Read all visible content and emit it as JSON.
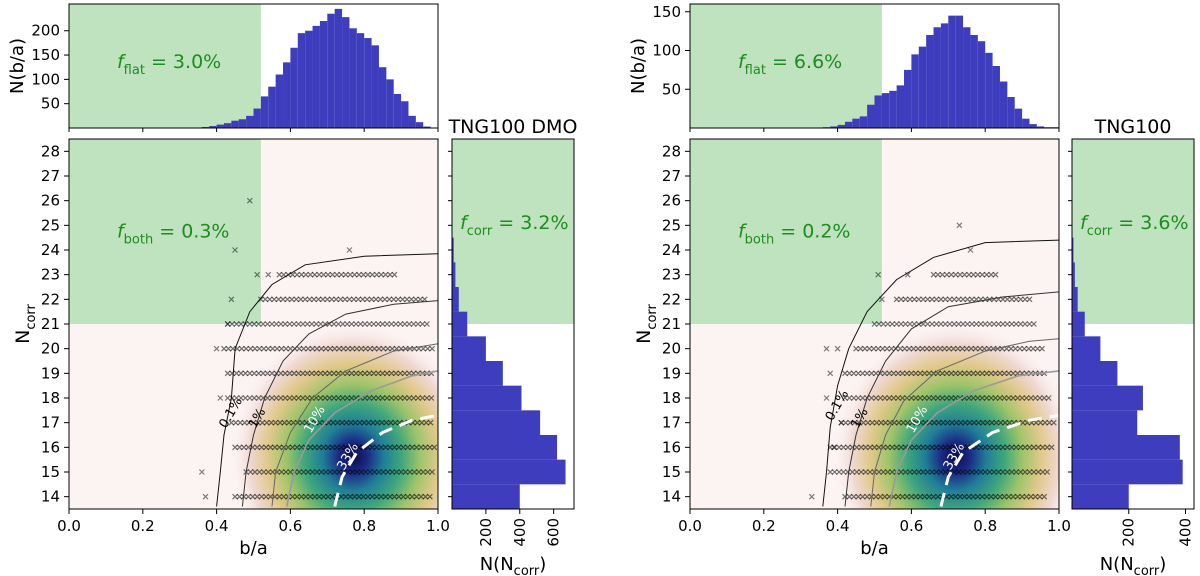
{
  "chart_data": [
    {
      "panel": "TNG100 DMO",
      "type": "scatter",
      "title": "TNG100 DMO",
      "xlabel": "b/a",
      "ylabel": "N",
      "ylabel_sub": "corr",
      "xlim": [
        0.0,
        1.0
      ],
      "ylim": [
        13.5,
        28.5
      ],
      "xticks": [
        "0.0",
        "0.2",
        "0.4",
        "0.6",
        "0.8",
        "1.0"
      ],
      "yticks": [
        "14",
        "15",
        "16",
        "17",
        "18",
        "19",
        "20",
        "21",
        "22",
        "23",
        "24",
        "25",
        "26",
        "27",
        "28"
      ],
      "shaded_regions": [
        {
          "x": [
            0.0,
            0.52
          ],
          "y": [
            21.0,
            28.5
          ]
        }
      ],
      "f_both": {
        "symbol": "f",
        "sub": "both",
        "text": " = 0.3%"
      },
      "density_peak": {
        "ba": 0.77,
        "ncorr": 15.6
      },
      "contours": [
        {
          "label": "0.1%",
          "points": [
            [
              0.4,
              13.6
            ],
            [
              0.41,
              15.0
            ],
            [
              0.42,
              16.5
            ],
            [
              0.44,
              18.0
            ],
            [
              0.45,
              20.0
            ],
            [
              0.49,
              21.5
            ],
            [
              0.55,
              22.6
            ],
            [
              0.64,
              23.4
            ],
            [
              0.8,
              23.75
            ],
            [
              1.0,
              23.85
            ]
          ]
        },
        {
          "label": "1%",
          "points": [
            [
              0.47,
              13.6
            ],
            [
              0.48,
              15.0
            ],
            [
              0.5,
              16.5
            ],
            [
              0.53,
              18.0
            ],
            [
              0.58,
              19.5
            ],
            [
              0.65,
              20.6
            ],
            [
              0.75,
              21.4
            ],
            [
              0.88,
              21.8
            ],
            [
              1.0,
              21.95
            ]
          ]
        },
        {
          "label": "",
          "points": [
            [
              0.55,
              13.6
            ],
            [
              0.56,
              15.0
            ],
            [
              0.6,
              16.6
            ],
            [
              0.66,
              18.0
            ],
            [
              0.75,
              19.1
            ],
            [
              0.88,
              19.9
            ],
            [
              1.0,
              20.2
            ]
          ]
        },
        {
          "label": "10%",
          "points": [
            [
              0.59,
              13.6
            ],
            [
              0.61,
              15.0
            ],
            [
              0.65,
              16.3
            ],
            [
              0.72,
              17.4
            ],
            [
              0.82,
              18.3
            ],
            [
              0.93,
              18.9
            ],
            [
              1.0,
              19.1
            ]
          ]
        },
        {
          "label": "33%",
          "points": [
            [
              0.72,
              13.6
            ],
            [
              0.74,
              14.8
            ],
            [
              0.78,
              15.8
            ],
            [
              0.85,
              16.6
            ],
            [
              0.93,
              17.1
            ],
            [
              1.0,
              17.3
            ]
          ]
        }
      ],
      "outliers": [
        [
          0.49,
          26.0
        ],
        [
          0.45,
          24.0
        ],
        [
          0.76,
          24.0
        ],
        [
          0.51,
          23.0
        ],
        [
          0.54,
          23.0
        ],
        [
          0.36,
          15.0
        ],
        [
          0.37,
          14.0
        ],
        [
          0.41,
          18.0
        ],
        [
          0.4,
          20.0
        ],
        [
          0.43,
          21.0
        ],
        [
          0.44,
          22.0
        ]
      ],
      "row_extent": [
        {
          "n": 14,
          "x0": 0.45,
          "x1": 0.98
        },
        {
          "n": 15,
          "x0": 0.48,
          "x1": 0.99
        },
        {
          "n": 16,
          "x0": 0.45,
          "x1": 0.99
        },
        {
          "n": 17,
          "x0": 0.44,
          "x1": 0.99
        },
        {
          "n": 18,
          "x0": 0.43,
          "x1": 0.99
        },
        {
          "n": 19,
          "x0": 0.43,
          "x1": 0.99
        },
        {
          "n": 20,
          "x0": 0.42,
          "x1": 0.99
        },
        {
          "n": 21,
          "x0": 0.43,
          "x1": 0.98
        },
        {
          "n": 22,
          "x0": 0.52,
          "x1": 0.97
        },
        {
          "n": 23,
          "x0": 0.57,
          "x1": 0.89
        }
      ],
      "top_hist": {
        "ylabel": "N(b/a)",
        "yticks": [
          50,
          100,
          150,
          200
        ],
        "ylim": [
          0,
          255
        ],
        "flat_region": [
          0.0,
          0.52
        ],
        "f_flat": {
          "symbol": "f",
          "sub": "flat",
          "text": " = 3.0%"
        },
        "bin_start": 0.36,
        "bin_width": 0.02,
        "values": [
          2,
          4,
          7,
          10,
          15,
          18,
          25,
          40,
          65,
          85,
          110,
          135,
          165,
          195,
          200,
          210,
          220,
          235,
          245,
          228,
          205,
          195,
          185,
          170,
          125,
          100,
          70,
          55,
          25,
          12,
          3,
          1
        ]
      },
      "right_hist": {
        "xlabel": "N",
        "xlabel_sub": "corr",
        "xticks": [
          200,
          400,
          600
        ],
        "xlim": [
          0,
          720
        ],
        "corr_region": [
          21.0,
          28.5
        ],
        "f_corr": {
          "symbol": "f",
          "sub": "corr",
          "text": " = 3.2%"
        },
        "bins": [
          14,
          15,
          16,
          17,
          18,
          19,
          20,
          21,
          22,
          23,
          24
        ],
        "values": [
          400,
          670,
          620,
          520,
          410,
          300,
          200,
          90,
          40,
          20,
          10
        ]
      }
    },
    {
      "panel": "TNG100",
      "type": "scatter",
      "title": "TNG100",
      "xlabel": "b/a",
      "ylabel": "N",
      "ylabel_sub": "corr",
      "xlim": [
        0.0,
        1.0
      ],
      "ylim": [
        13.5,
        28.5
      ],
      "xticks": [
        "0.0",
        "0.2",
        "0.4",
        "0.6",
        "0.8",
        "1.0"
      ],
      "yticks": [
        "14",
        "15",
        "16",
        "17",
        "18",
        "19",
        "20",
        "21",
        "22",
        "23",
        "24",
        "25",
        "26",
        "27",
        "28"
      ],
      "shaded_regions": [
        {
          "x": [
            0.0,
            0.52
          ],
          "y": [
            21.0,
            28.5
          ]
        }
      ],
      "f_both": {
        "symbol": "f",
        "sub": "both",
        "text": " = 0.2%"
      },
      "density_peak": {
        "ba": 0.72,
        "ncorr": 15.6
      },
      "contours": [
        {
          "label": "0.1%",
          "points": [
            [
              0.36,
              13.6
            ],
            [
              0.37,
              15.0
            ],
            [
              0.38,
              16.8
            ],
            [
              0.4,
              18.5
            ],
            [
              0.43,
              20.0
            ],
            [
              0.48,
              21.5
            ],
            [
              0.56,
              22.8
            ],
            [
              0.66,
              23.7
            ],
            [
              0.8,
              24.3
            ],
            [
              1.0,
              24.4
            ]
          ]
        },
        {
          "label": "1%",
          "points": [
            [
              0.42,
              13.6
            ],
            [
              0.43,
              15.0
            ],
            [
              0.45,
              16.5
            ],
            [
              0.48,
              18.0
            ],
            [
              0.53,
              19.5
            ],
            [
              0.6,
              20.8
            ],
            [
              0.7,
              21.7
            ],
            [
              0.85,
              22.1
            ],
            [
              1.0,
              22.3
            ]
          ]
        },
        {
          "label": "",
          "points": [
            [
              0.49,
              13.6
            ],
            [
              0.5,
              15.0
            ],
            [
              0.53,
              16.5
            ],
            [
              0.58,
              17.9
            ],
            [
              0.67,
              19.1
            ],
            [
              0.8,
              19.9
            ],
            [
              0.92,
              20.3
            ],
            [
              1.0,
              20.4
            ]
          ]
        },
        {
          "label": "10%",
          "points": [
            [
              0.54,
              13.6
            ],
            [
              0.56,
              15.0
            ],
            [
              0.6,
              16.3
            ],
            [
              0.67,
              17.4
            ],
            [
              0.77,
              18.3
            ],
            [
              0.89,
              18.9
            ],
            [
              1.0,
              19.1
            ]
          ]
        },
        {
          "label": "33%",
          "points": [
            [
              0.68,
              13.6
            ],
            [
              0.7,
              14.8
            ],
            [
              0.74,
              15.8
            ],
            [
              0.82,
              16.6
            ],
            [
              0.92,
              17.1
            ],
            [
              1.0,
              17.3
            ]
          ]
        }
      ],
      "outliers": [
        [
          0.33,
          14.0
        ],
        [
          0.73,
          25.0
        ],
        [
          0.76,
          24.0
        ],
        [
          0.51,
          23.0
        ],
        [
          0.59,
          23.0
        ],
        [
          0.52,
          22.0
        ],
        [
          0.37,
          20.0
        ],
        [
          0.4,
          20.0
        ],
        [
          0.38,
          19.0
        ],
        [
          0.37,
          18.0
        ],
        [
          0.41,
          17.0
        ],
        [
          0.39,
          16.0
        ]
      ],
      "row_extent": [
        {
          "n": 14,
          "x0": 0.42,
          "x1": 0.96
        },
        {
          "n": 15,
          "x0": 0.38,
          "x1": 0.97
        },
        {
          "n": 16,
          "x0": 0.38,
          "x1": 0.98
        },
        {
          "n": 17,
          "x0": 0.41,
          "x1": 0.99
        },
        {
          "n": 18,
          "x0": 0.42,
          "x1": 0.98
        },
        {
          "n": 19,
          "x0": 0.42,
          "x1": 0.97
        },
        {
          "n": 20,
          "x0": 0.45,
          "x1": 0.96
        },
        {
          "n": 21,
          "x0": 0.5,
          "x1": 0.94
        },
        {
          "n": 22,
          "x0": 0.56,
          "x1": 0.93
        },
        {
          "n": 23,
          "x0": 0.66,
          "x1": 0.83
        }
      ],
      "top_hist": {
        "ylabel": "N(b/a)",
        "yticks": [
          50,
          100,
          150
        ],
        "ylim": [
          0,
          160
        ],
        "flat_region": [
          0.0,
          0.52
        ],
        "f_flat": {
          "symbol": "f",
          "sub": "flat",
          "text": " = 6.6%"
        },
        "bin_start": 0.36,
        "bin_width": 0.02,
        "values": [
          1,
          2,
          4,
          8,
          12,
          15,
          30,
          42,
          45,
          48,
          55,
          75,
          95,
          105,
          120,
          130,
          135,
          145,
          145,
          130,
          120,
          112,
          97,
          80,
          60,
          40,
          25,
          12,
          5,
          2,
          1,
          1
        ]
      },
      "right_hist": {
        "xlabel": "N",
        "xlabel_sub": "corr",
        "xticks": [
          200,
          400
        ],
        "xlim": [
          0,
          430
        ],
        "corr_region": [
          21.0,
          28.5
        ],
        "f_corr": {
          "symbol": "f",
          "sub": "corr",
          "text": " = 3.6%"
        },
        "bins": [
          14,
          15,
          16,
          17,
          18,
          19,
          20,
          21,
          22,
          23,
          24
        ],
        "values": [
          200,
          390,
          380,
          230,
          250,
          160,
          100,
          45,
          20,
          10,
          5
        ]
      }
    }
  ]
}
